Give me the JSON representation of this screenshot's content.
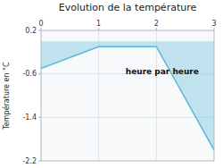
{
  "chart_data": {
    "type": "area",
    "title": "Evolution de la température",
    "y_label": "Température en °C",
    "annotation": "heure par heure",
    "x": [
      0,
      1,
      2,
      3
    ],
    "values": [
      -0.5,
      -0.1,
      -0.1,
      -2.0
    ],
    "color": "#5ab8d8",
    "xlim": [
      0,
      3
    ],
    "ylim": [
      -2.2,
      0.2
    ],
    "xticks": [
      0,
      1,
      2,
      3
    ],
    "yticks": [
      0.2,
      -0.6,
      -1.4,
      -2.2
    ],
    "grid": true
  }
}
